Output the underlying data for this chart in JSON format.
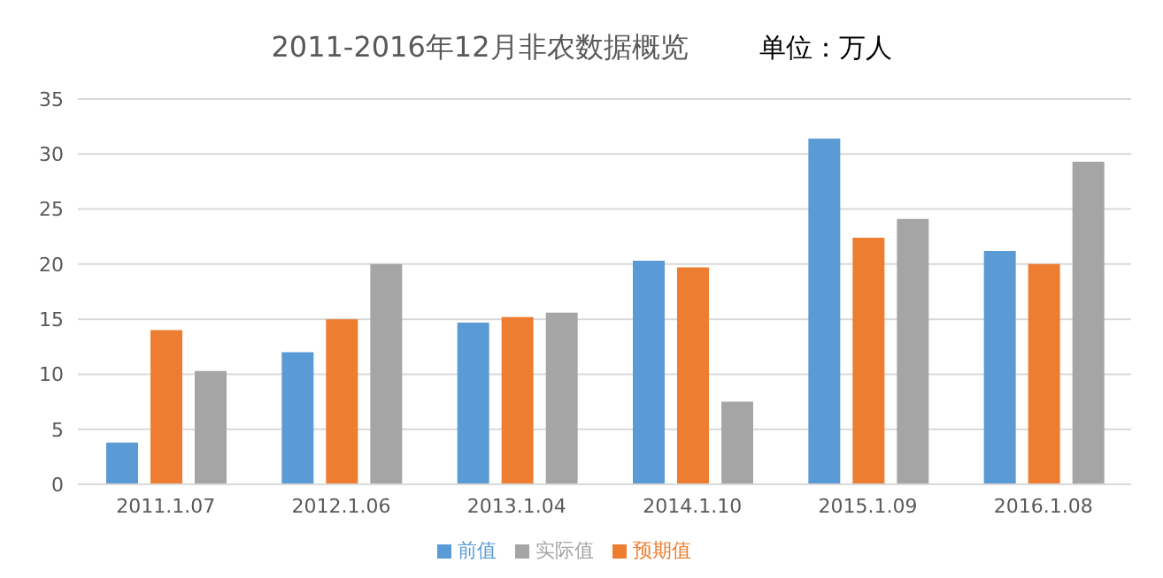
{
  "chart_data": {
    "type": "bar",
    "title": "2011-2016年12月非农数据概览",
    "subtitle": "单位：万人",
    "categories": [
      "2011.1.07",
      "2012.1.06",
      "2013.1.04",
      "2014.1.10",
      "2015.1.09",
      "2016.1.08"
    ],
    "series": [
      {
        "name": "前值",
        "color": "#5b9bd5",
        "values": [
          3.8,
          12.0,
          14.7,
          20.3,
          31.4,
          21.2
        ]
      },
      {
        "name": "预期值",
        "color": "#ed7d31",
        "values": [
          14.0,
          15.0,
          15.2,
          19.7,
          22.4,
          20.0
        ]
      },
      {
        "name": "实际值",
        "color": "#a5a5a5",
        "values": [
          10.3,
          20.0,
          15.6,
          7.5,
          24.1,
          29.3
        ]
      }
    ],
    "ylim": [
      0,
      35
    ],
    "yticks": [
      0,
      5,
      10,
      15,
      20,
      25,
      30,
      35
    ],
    "grid": "y",
    "legend": "bottom"
  }
}
